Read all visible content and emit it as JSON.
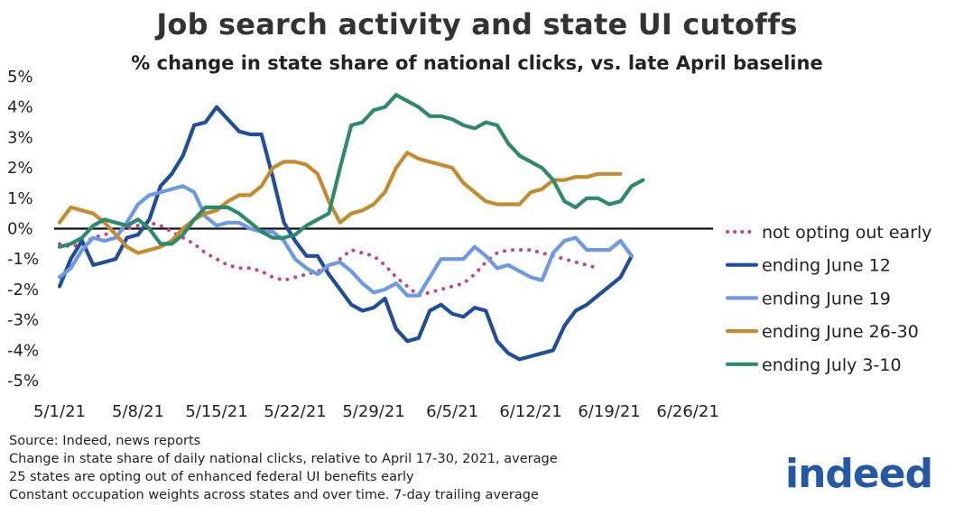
{
  "title": "Job search activity and state UI cutoffs",
  "subtitle": "% change in state share of national clicks, vs. late April baseline",
  "notes": [
    "Source: Indeed, news reports",
    "Change in state share of daily national clicks, relative to April 17-30, 2021, average",
    "25 states are opting out of enhanced federal UI benefits early",
    "Constant occupation weights across states and over time. 7-day trailing average"
  ],
  "logo": {
    "text": "indeed",
    "colors": {
      "main": "#2557a7",
      "accent": "#ff6b2b"
    }
  },
  "chart_data": {
    "type": "line",
    "title": "Job search activity and state UI cutoffs",
    "subtitle": "% change in state share of national clicks, vs. late April baseline",
    "xlabel": "",
    "ylabel": "",
    "x_start": "5/1/21",
    "x_ticks": [
      "5/1/21",
      "5/8/21",
      "5/15/21",
      "5/22/21",
      "5/29/21",
      "6/5/21",
      "6/12/21",
      "6/19/21",
      "6/26/21"
    ],
    "y_ticks": [
      "5%",
      "4%",
      "3%",
      "2%",
      "1%",
      "0%",
      "-1%",
      "-2%",
      "-3%",
      "-4%",
      "-5%"
    ],
    "ylim": [
      -5,
      5
    ],
    "grid": false,
    "zero_line": true,
    "legend_position": "right",
    "series": [
      {
        "name": "not opting out early",
        "color": "#c8448a",
        "style": "dotted",
        "values": [
          -0.5,
          -0.6,
          -0.5,
          -0.3,
          -0.2,
          -0.1,
          0.0,
          0.1,
          0.2,
          0.1,
          -0.1,
          -0.3,
          -0.5,
          -0.8,
          -1.0,
          -1.2,
          -1.3,
          -1.3,
          -1.4,
          -1.6,
          -1.7,
          -1.6,
          -1.5,
          -1.4,
          -1.3,
          -1.0,
          -0.7,
          -0.8,
          -0.9,
          -1.2,
          -1.6,
          -1.9,
          -2.2,
          -2.1,
          -2.0,
          -1.9,
          -1.8,
          -1.5,
          -1.1,
          -0.8,
          -0.7,
          -0.7,
          -0.7,
          -0.8,
          -0.9,
          -1.0,
          -1.1,
          -1.2,
          -1.3
        ]
      },
      {
        "name": "ending June 12",
        "color": "#1f4e9c",
        "style": "solid",
        "values": [
          -1.9,
          -1.0,
          -0.4,
          -1.2,
          -1.1,
          -1.0,
          -0.3,
          -0.2,
          0.3,
          1.4,
          1.8,
          2.4,
          3.4,
          3.5,
          4.0,
          3.6,
          3.2,
          3.1,
          3.1,
          1.7,
          0.2,
          -0.4,
          -0.9,
          -0.9,
          -1.5,
          -2.0,
          -2.5,
          -2.7,
          -2.6,
          -2.3,
          -3.3,
          -3.7,
          -3.6,
          -2.7,
          -2.5,
          -2.8,
          -2.9,
          -2.6,
          -2.7,
          -3.7,
          -4.1,
          -4.3,
          -4.2,
          -4.1,
          -4.0,
          -3.2,
          -2.7,
          -2.5,
          -2.2,
          -1.9,
          -1.6,
          -0.9
        ]
      },
      {
        "name": "ending June 19",
        "color": "#6c9ae8",
        "style": "solid",
        "values": [
          -1.6,
          -1.3,
          -0.7,
          -0.3,
          -0.4,
          -0.3,
          0.2,
          0.8,
          1.1,
          1.2,
          1.3,
          1.4,
          1.2,
          0.4,
          0.1,
          0.2,
          0.2,
          0.0,
          -0.1,
          -0.1,
          -0.4,
          -1.0,
          -1.3,
          -1.5,
          -1.2,
          -1.1,
          -1.4,
          -1.8,
          -2.1,
          -2.0,
          -1.8,
          -2.2,
          -2.2,
          -1.6,
          -1.0,
          -1.0,
          -1.0,
          -0.6,
          -0.9,
          -1.3,
          -1.2,
          -1.4,
          -1.6,
          -1.7,
          -0.8,
          -0.4,
          -0.3,
          -0.7,
          -0.7,
          -0.7,
          -0.4,
          -0.9
        ]
      },
      {
        "name": "ending June 26-30",
        "color": "#c58b2f",
        "style": "solid",
        "values": [
          0.2,
          0.7,
          0.6,
          0.5,
          0.2,
          -0.2,
          -0.6,
          -0.8,
          -0.7,
          -0.6,
          -0.4,
          0.0,
          0.3,
          0.5,
          0.6,
          0.9,
          1.1,
          1.1,
          1.4,
          2.0,
          2.2,
          2.2,
          2.1,
          1.8,
          0.9,
          0.2,
          0.5,
          0.6,
          0.8,
          1.2,
          2.0,
          2.5,
          2.3,
          2.2,
          2.1,
          2.0,
          1.5,
          1.2,
          0.9,
          0.8,
          0.8,
          0.8,
          1.2,
          1.3,
          1.6,
          1.6,
          1.7,
          1.7,
          1.8,
          1.8,
          1.8
        ]
      },
      {
        "name": "ending July 3-10",
        "color": "#2e8a6c",
        "style": "solid",
        "values": [
          -0.6,
          -0.5,
          -0.3,
          0.1,
          0.3,
          0.2,
          0.1,
          0.3,
          0.0,
          -0.5,
          -0.5,
          -0.2,
          0.3,
          0.7,
          0.7,
          0.7,
          0.5,
          0.2,
          -0.1,
          -0.3,
          -0.3,
          -0.2,
          0.1,
          0.3,
          0.5,
          2.0,
          3.4,
          3.5,
          3.9,
          4.0,
          4.4,
          4.2,
          4.0,
          3.7,
          3.7,
          3.6,
          3.4,
          3.3,
          3.5,
          3.4,
          2.8,
          2.4,
          2.2,
          2.0,
          1.6,
          0.9,
          0.7,
          1.0,
          1.0,
          0.8,
          0.9,
          1.4,
          1.6
        ]
      }
    ]
  }
}
